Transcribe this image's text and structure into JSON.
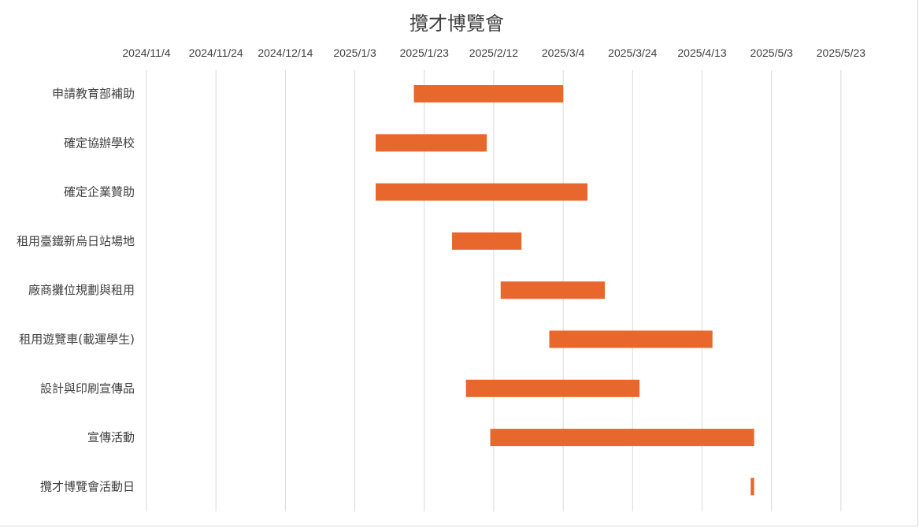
{
  "chart_data": {
    "type": "bar",
    "subtype": "gantt",
    "title": "攬才博覽會",
    "xlabel": "",
    "ylabel": "",
    "x_axis": {
      "scale": "date",
      "position": "top",
      "range": [
        "2024-11-04",
        "2025-06-02"
      ],
      "tick_interval_days": 20,
      "tick_labels": [
        "2024/11/4",
        "2024/11/24",
        "2024/12/14",
        "2025/1/3",
        "2025/1/23",
        "2025/2/12",
        "2025/3/4",
        "2025/3/24",
        "2025/4/13",
        "2025/5/3",
        "2025/5/23"
      ]
    },
    "grid": true,
    "legend": "none",
    "bar_color": "#E8672D",
    "grid_color": "#D9D9D9",
    "text_color": "#404040",
    "tasks": [
      {
        "name": "申請教育部補助",
        "start": "2025-01-20",
        "end": "2025-03-04"
      },
      {
        "name": "確定協辦學校",
        "start": "2025-01-09",
        "end": "2025-02-10"
      },
      {
        "name": "確定企業贊助",
        "start": "2025-01-09",
        "end": "2025-03-11"
      },
      {
        "name": "租用臺鐵新烏日站場地",
        "start": "2025-01-31",
        "end": "2025-02-20"
      },
      {
        "name": "廠商攤位規劃與租用",
        "start": "2025-02-14",
        "end": "2025-03-16"
      },
      {
        "name": "租用遊覽車(載運學生)",
        "start": "2025-02-28",
        "end": "2025-04-16"
      },
      {
        "name": "設計與印刷宣傳品",
        "start": "2025-02-04",
        "end": "2025-03-26"
      },
      {
        "name": "宣傳活動",
        "start": "2025-02-11",
        "end": "2025-04-28"
      },
      {
        "name": "攬才博覽會活動日",
        "start": "2025-04-27",
        "end": "2025-04-28"
      }
    ]
  }
}
